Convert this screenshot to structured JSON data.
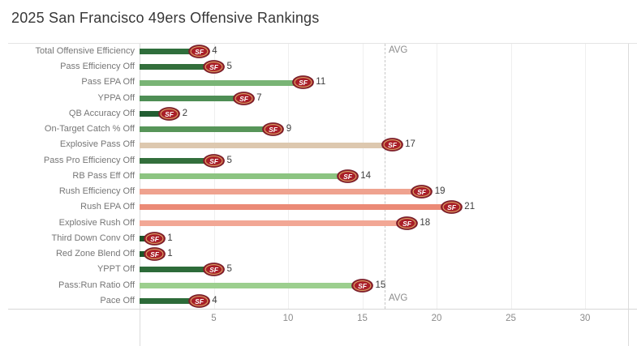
{
  "title": "2025 San Francisco 49ers Offensive Rankings",
  "avg_label": "AVG",
  "logo": {
    "text": "SF",
    "body_color": "#a91e28",
    "ring_color": "#77222c",
    "trim_color": "#d9b36c"
  },
  "colors": {
    "title": "#373737",
    "row_label": "#767676",
    "value_label": "#3e3e3e",
    "tick_label": "#8b8b8b",
    "gridline": "#efefef",
    "avg_line": "#c7c7c7"
  },
  "chart_data": {
    "type": "bar",
    "orientation": "horizontal",
    "title": "2025 San Francisco 49ers Offensive Rankings",
    "xlabel": "",
    "ylabel": "",
    "xlim": [
      0,
      33
    ],
    "x_ticks": [
      5,
      10,
      15,
      20,
      25,
      30
    ],
    "grid": "vertical-light",
    "avg_reference_line": {
      "value": 16.5,
      "label": "AVG",
      "style": "dashed"
    },
    "marker": "49ers-logo-at-bar-end",
    "rows": [
      {
        "label": "Total Offensive Efficiency",
        "value": 4,
        "color": "#2f6e3c"
      },
      {
        "label": "Pass Efficiency Off",
        "value": 5,
        "color": "#336f3c"
      },
      {
        "label": "Pass EPA Off",
        "value": 11,
        "color": "#79b475"
      },
      {
        "label": "YPPA Off",
        "value": 7,
        "color": "#4e8e55"
      },
      {
        "label": "QB Accuracy Off",
        "value": 2,
        "color": "#235e33"
      },
      {
        "label": "On-Target Catch % Off",
        "value": 9,
        "color": "#579559"
      },
      {
        "label": "Explosive Pass Off",
        "value": 17,
        "color": "#ddc8af"
      },
      {
        "label": "Pass Pro Efficiency Off",
        "value": 5,
        "color": "#336f3c"
      },
      {
        "label": "RB Pass Eff Off",
        "value": 14,
        "color": "#8cc481"
      },
      {
        "label": "Rush Efficiency Off",
        "value": 19,
        "color": "#efa28f"
      },
      {
        "label": "Rush EPA Off",
        "value": 21,
        "color": "#eb8a76"
      },
      {
        "label": "Explosive Rush Off",
        "value": 18,
        "color": "#f2a795"
      },
      {
        "label": "Third Down Conv Off",
        "value": 1,
        "color": "#1c5429"
      },
      {
        "label": "Red Zone Blend Off",
        "value": 1,
        "color": "#1c5429"
      },
      {
        "label": "YPPT Off",
        "value": 5,
        "color": "#2d6b39"
      },
      {
        "label": "Pass:Run Ratio Off",
        "value": 15,
        "color": "#9ccf8e"
      },
      {
        "label": "Pace Off",
        "value": 4,
        "color": "#2d6b39"
      }
    ]
  }
}
